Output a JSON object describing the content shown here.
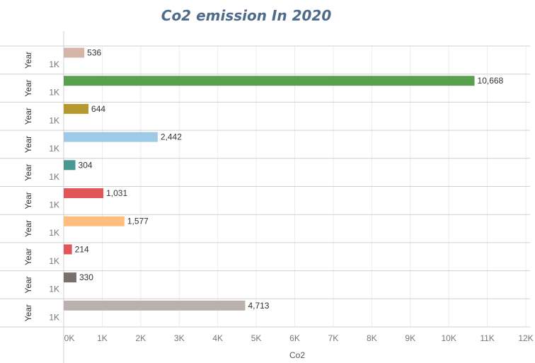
{
  "chart_data": {
    "type": "bar",
    "orientation": "horizontal",
    "title": "Co2 emission In 2020",
    "xlabel": "Co2",
    "row_label": "Year",
    "row_sublabel": "1K",
    "xlim": [
      0,
      12000
    ],
    "x_ticks": [
      "0K",
      "1K",
      "2K",
      "3K",
      "4K",
      "5K",
      "6K",
      "7K",
      "8K",
      "9K",
      "10K",
      "11K",
      "12K"
    ],
    "grid": true,
    "values": [
      536,
      10668,
      644,
      2442,
      304,
      1031,
      1577,
      214,
      330,
      4713
    ],
    "value_labels": [
      "536",
      "10,668",
      "644",
      "2,442",
      "304",
      "1,031",
      "1,577",
      "214",
      "330",
      "4,713"
    ],
    "colors": [
      "#d4b5a7",
      "#59a14f",
      "#b6992d",
      "#9fcae6",
      "#499894",
      "#e15759",
      "#ffbe7d",
      "#e15759",
      "#79706e",
      "#bab0ac"
    ]
  }
}
